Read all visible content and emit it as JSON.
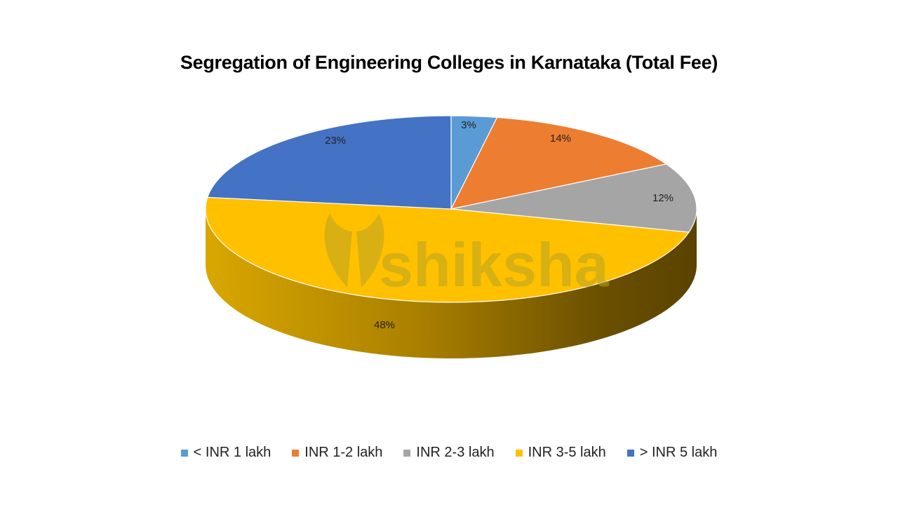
{
  "title": "Segregation of Engineering Colleges in Karnataka (Total Fee)",
  "watermark": "shiksha",
  "legend": [
    {
      "label": "< INR 1 lakh",
      "color": "#5b9bd5"
    },
    {
      "label": "INR 1-2 lakh",
      "color": "#ed7d31"
    },
    {
      "label": "INR 2-3 lakh",
      "color": "#a5a5a5"
    },
    {
      "label": "INR 3-5 lakh",
      "color": "#ffc000"
    },
    {
      "label": "> INR 5 lakh",
      "color": "#4472c4"
    }
  ],
  "chart_data": {
    "type": "pie",
    "title": "Segregation of Engineering Colleges in Karnataka (Total Fee)",
    "categories": [
      "< INR 1 lakh",
      "INR 1-2 lakh",
      "INR 2-3 lakh",
      "INR 3-5 lakh",
      "> INR 5 lakh"
    ],
    "values": [
      3,
      14,
      12,
      48,
      23
    ],
    "labels": [
      "3%",
      "14%",
      "12%",
      "48%",
      "23%"
    ],
    "colors": [
      "#5b9bd5",
      "#ed7d31",
      "#a5a5a5",
      "#ffc000",
      "#4472c4"
    ],
    "style": "3d",
    "legend_position": "bottom"
  }
}
